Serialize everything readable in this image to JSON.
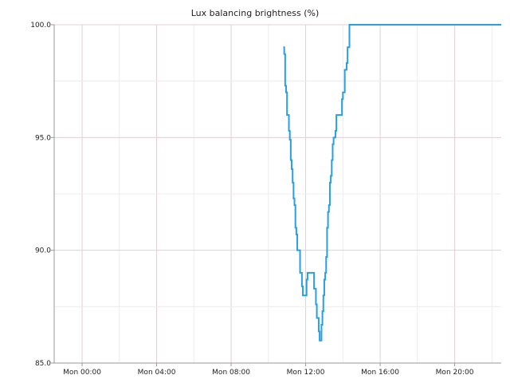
{
  "chart_data": {
    "type": "line",
    "title": "Lux balancing brightness (%)",
    "xlabel": "",
    "ylabel": "",
    "x_unit": "hour",
    "xlim": [
      -1.5,
      22.5
    ],
    "ylim": [
      85.0,
      100.0
    ],
    "x_ticks": [
      {
        "value": 0,
        "label": "Mon 00:00"
      },
      {
        "value": 4,
        "label": "Mon 04:00"
      },
      {
        "value": 8,
        "label": "Mon 08:00"
      },
      {
        "value": 12,
        "label": "Mon 12:00"
      },
      {
        "value": 16,
        "label": "Mon 16:00"
      },
      {
        "value": 20,
        "label": "Mon 20:00"
      }
    ],
    "y_ticks": [
      {
        "value": 85.0,
        "label": "85.0"
      },
      {
        "value": 90.0,
        "label": "90.0"
      },
      {
        "value": 95.0,
        "label": "95.0"
      },
      {
        "value": 100.0,
        "label": "100.0"
      }
    ],
    "grid": true,
    "series": [
      {
        "color": "#2a9fe0",
        "line_style": "step",
        "points": [
          [
            10.8,
            99.0
          ],
          [
            10.85,
            98.7
          ],
          [
            10.9,
            97.3
          ],
          [
            10.95,
            97.0
          ],
          [
            11.0,
            96.0
          ],
          [
            11.1,
            95.3
          ],
          [
            11.15,
            94.9
          ],
          [
            11.2,
            94.0
          ],
          [
            11.25,
            93.6
          ],
          [
            11.3,
            93.0
          ],
          [
            11.35,
            92.3
          ],
          [
            11.4,
            92.0
          ],
          [
            11.45,
            91.0
          ],
          [
            11.5,
            90.7
          ],
          [
            11.55,
            90.0
          ],
          [
            11.7,
            89.0
          ],
          [
            11.8,
            88.4
          ],
          [
            11.85,
            88.0
          ],
          [
            12.05,
            88.7
          ],
          [
            12.1,
            89.0
          ],
          [
            12.45,
            88.3
          ],
          [
            12.55,
            87.6
          ],
          [
            12.6,
            87.0
          ],
          [
            12.7,
            86.4
          ],
          [
            12.75,
            86.0
          ],
          [
            12.85,
            86.7
          ],
          [
            12.9,
            87.3
          ],
          [
            12.95,
            88.0
          ],
          [
            13.0,
            88.7
          ],
          [
            13.05,
            89.0
          ],
          [
            13.1,
            89.7
          ],
          [
            13.15,
            91.0
          ],
          [
            13.2,
            91.7
          ],
          [
            13.25,
            92.0
          ],
          [
            13.3,
            93.0
          ],
          [
            13.35,
            93.3
          ],
          [
            13.4,
            94.0
          ],
          [
            13.45,
            94.7
          ],
          [
            13.5,
            95.0
          ],
          [
            13.6,
            95.3
          ],
          [
            13.65,
            96.0
          ],
          [
            13.95,
            96.7
          ],
          [
            14.0,
            97.0
          ],
          [
            14.1,
            98.0
          ],
          [
            14.2,
            98.3
          ],
          [
            14.25,
            99.0
          ],
          [
            14.35,
            100.0
          ],
          [
            22.5,
            100.0
          ]
        ]
      }
    ]
  }
}
